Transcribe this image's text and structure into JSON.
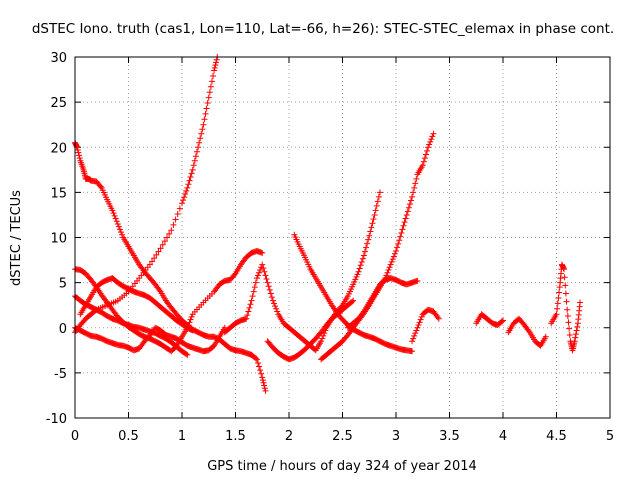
{
  "chart_data": {
    "type": "scatter",
    "title": "dSTEC Iono. truth (cas1, Lon=110, Lat=-66, h=26): STEC-STEC_elemax in phase cont.",
    "xlabel": "GPS time / hours of day 324 of year 2014",
    "ylabel": "dSTEC  / TECUs",
    "xlim": [
      0,
      5
    ],
    "ylim": [
      -10,
      30
    ],
    "xticks": [
      "0",
      "0.5",
      "1",
      "1.5",
      "2",
      "2.5",
      "3",
      "3.5",
      "4",
      "4.5",
      "5"
    ],
    "yticks": [
      "-10",
      "-5",
      "0",
      "5",
      "10",
      "15",
      "20",
      "25",
      "30"
    ],
    "grid": true,
    "marker": "plus",
    "color": "#ff0000",
    "series": [
      {
        "x": [
          0.0,
          0.05,
          0.1,
          0.15,
          0.2,
          0.3,
          0.4,
          0.5,
          0.6,
          0.7,
          0.8,
          0.9,
          1.0,
          1.05,
          1.1,
          1.15,
          1.2,
          1.25,
          1.3,
          1.33
        ],
        "y": [
          -0.5,
          0.3,
          1.0,
          1.5,
          2.0,
          2.5,
          3.0,
          4.0,
          5.5,
          7.0,
          8.8,
          10.8,
          13.8,
          15.5,
          17.5,
          20.0,
          22.5,
          25.5,
          28.5,
          30.0
        ]
      },
      {
        "x": [
          0.0,
          0.02,
          0.05,
          0.08,
          0.1,
          0.13,
          0.15,
          0.2,
          0.25,
          0.3,
          0.35,
          0.4,
          0.45,
          0.5,
          0.55,
          0.6,
          0.65,
          0.7,
          0.75,
          0.8,
          0.85,
          0.9,
          0.95,
          1.0,
          1.05,
          1.1,
          1.15,
          1.2,
          1.25,
          1.3,
          1.35,
          1.4,
          1.45,
          1.5,
          1.55,
          1.6,
          1.65,
          1.7,
          1.75,
          1.78
        ],
        "y": [
          20.5,
          20.0,
          18.5,
          17.5,
          16.5,
          16.5,
          16.3,
          16.2,
          15.5,
          14.2,
          13.0,
          11.5,
          10.0,
          9.0,
          8.0,
          7.0,
          6.2,
          5.5,
          4.8,
          4.0,
          3.0,
          2.2,
          1.5,
          0.8,
          0.3,
          -0.2,
          -0.5,
          -0.8,
          -1.0,
          -1.0,
          -1.3,
          -1.8,
          -2.3,
          -2.5,
          -2.6,
          -2.8,
          -3.0,
          -3.5,
          -5.5,
          -7.0
        ]
      },
      {
        "x": [
          0.0,
          0.05,
          0.1,
          0.15,
          0.2,
          0.25,
          0.3,
          0.35,
          0.4,
          0.45,
          0.5,
          0.55,
          0.6,
          0.65,
          0.7,
          0.75,
          0.8,
          0.85,
          0.9,
          0.95,
          1.0,
          1.05,
          1.1,
          1.2,
          1.3,
          1.35,
          1.4,
          1.45,
          1.5,
          1.55,
          1.6,
          1.65,
          1.7,
          1.75
        ],
        "y": [
          6.5,
          6.4,
          6.0,
          5.3,
          4.5,
          3.6,
          2.8,
          2.0,
          1.2,
          0.6,
          0.1,
          -0.3,
          -0.7,
          -1.0,
          -1.2,
          -1.5,
          -1.8,
          -2.2,
          -2.6,
          -2.0,
          -1.0,
          0.0,
          1.5,
          2.8,
          4.0,
          4.8,
          5.2,
          5.3,
          6.0,
          7.0,
          7.8,
          8.3,
          8.5,
          8.3
        ]
      },
      {
        "x": [
          0.0,
          0.05,
          0.1,
          0.15,
          0.2,
          0.25,
          0.3,
          0.35,
          0.4,
          0.45,
          0.5,
          0.55,
          0.6,
          0.65,
          0.7,
          0.75,
          0.8,
          0.85,
          0.9,
          0.95,
          1.0,
          1.05
        ],
        "y": [
          3.5,
          3.0,
          2.6,
          2.3,
          2.0,
          1.7,
          1.3,
          1.0,
          0.8,
          0.5,
          0.3,
          0.1,
          0.0,
          -0.2,
          -0.4,
          -0.6,
          -0.9,
          -1.2,
          -1.6,
          -2.1,
          -2.6,
          -3.0
        ]
      },
      {
        "x": [
          0.0,
          0.05,
          0.1,
          0.15,
          0.2,
          0.25,
          0.3,
          0.35,
          0.4,
          0.45,
          0.5,
          0.55,
          0.6,
          0.65,
          0.7,
          0.75,
          0.8,
          0.85,
          0.9,
          0.95,
          1.0,
          1.05,
          1.1,
          1.15,
          1.2,
          1.25,
          1.3,
          1.35,
          1.4
        ],
        "y": [
          0.0,
          -0.3,
          -0.6,
          -0.9,
          -1.0,
          -1.2,
          -1.5,
          -1.7,
          -1.9,
          -2.0,
          -2.2,
          -2.5,
          -2.3,
          -1.5,
          -0.8,
          0.0,
          -0.3,
          -0.8,
          -1.0,
          -1.2,
          -1.6,
          -2.0,
          -2.2,
          -2.4,
          -2.6,
          -2.5,
          -2.0,
          -1.0,
          0.0
        ]
      },
      {
        "x": [
          0.05,
          0.1,
          0.15,
          0.2,
          0.25,
          0.3,
          0.35,
          0.4,
          0.45,
          0.5,
          0.55,
          0.6,
          0.65,
          0.7,
          0.75,
          0.8,
          0.85,
          0.9,
          0.95,
          1.0,
          1.05,
          1.1
        ],
        "y": [
          1.5,
          2.5,
          3.5,
          4.5,
          5.0,
          5.3,
          5.5,
          5.0,
          4.6,
          4.3,
          4.0,
          3.8,
          3.6,
          3.3,
          2.8,
          2.3,
          1.8,
          1.3,
          0.8,
          0.4,
          0.0,
          -0.3
        ]
      },
      {
        "x": [
          1.4,
          1.45,
          1.5,
          1.55,
          1.6,
          1.65,
          1.7,
          1.75,
          1.8,
          1.85,
          1.9,
          1.95,
          2.0,
          2.05,
          2.1,
          2.15,
          2.2,
          2.25,
          2.3,
          2.35,
          2.4,
          2.45,
          2.5,
          2.55,
          2.6
        ],
        "y": [
          -0.5,
          0.0,
          0.5,
          0.8,
          1.0,
          3.0,
          5.5,
          7.0,
          5.0,
          3.0,
          1.5,
          0.5,
          0.0,
          -0.5,
          -1.0,
          -1.5,
          -2.0,
          -2.5,
          -1.5,
          0.0,
          1.0,
          1.5,
          2.0,
          2.5,
          3.0
        ]
      },
      {
        "x": [
          2.05,
          2.1,
          2.15,
          2.2,
          2.25,
          2.3,
          2.35,
          2.4,
          2.45,
          2.5,
          2.55,
          2.6,
          2.65,
          2.7,
          2.75,
          2.8,
          2.85,
          2.9,
          2.95,
          3.0,
          3.05,
          3.1,
          3.15
        ],
        "y": [
          10.3,
          9.0,
          7.8,
          6.5,
          5.5,
          4.5,
          3.5,
          2.5,
          1.6,
          0.9,
          0.3,
          -0.2,
          -0.5,
          -0.8,
          -1.0,
          -1.2,
          -1.5,
          -1.8,
          -2.0,
          -2.2,
          -2.4,
          -2.5,
          -2.6
        ]
      },
      {
        "x": [
          1.8,
          1.85,
          1.9,
          1.95,
          2.0,
          2.05,
          2.1,
          2.15,
          2.2,
          2.25,
          2.3,
          2.35,
          2.4,
          2.45,
          2.5,
          2.55,
          2.6,
          2.65,
          2.7,
          2.75,
          2.8,
          2.85
        ],
        "y": [
          -1.5,
          -2.2,
          -2.8,
          -3.2,
          -3.5,
          -3.3,
          -2.9,
          -2.4,
          -1.8,
          -1.2,
          -0.5,
          0.3,
          1.0,
          1.8,
          2.5,
          3.5,
          4.8,
          6.2,
          8.0,
          10.2,
          12.5,
          15.0
        ]
      },
      {
        "x": [
          2.3,
          2.35,
          2.4,
          2.45,
          2.5,
          2.55,
          2.6,
          2.65,
          2.7,
          2.75,
          2.8,
          2.85,
          2.9,
          2.95,
          3.0,
          3.05,
          3.1,
          3.15,
          3.2,
          3.25,
          3.3,
          3.35
        ],
        "y": [
          -3.5,
          -3.0,
          -2.5,
          -2.0,
          -1.5,
          -0.8,
          0.0,
          0.8,
          1.6,
          2.5,
          3.5,
          4.5,
          5.5,
          7.0,
          8.5,
          10.5,
          12.5,
          14.5,
          17.0,
          18.0,
          20.0,
          21.5
        ]
      },
      {
        "x": [
          2.55,
          2.6,
          2.65,
          2.7,
          2.75,
          2.8,
          2.85,
          2.9,
          2.95,
          3.0,
          3.05,
          3.1,
          3.15,
          3.2
        ],
        "y": [
          0.0,
          0.5,
          1.0,
          1.8,
          2.8,
          3.8,
          4.8,
          5.3,
          5.5,
          5.3,
          5.0,
          4.8,
          5.0,
          5.2
        ]
      },
      {
        "x": [
          3.15,
          3.2,
          3.25,
          3.3,
          3.35,
          3.4
        ],
        "y": [
          -1.5,
          0.0,
          1.5,
          2.0,
          1.8,
          1.0
        ]
      },
      {
        "x": [
          3.75,
          3.8,
          3.85,
          3.9,
          3.95,
          4.0
        ],
        "y": [
          0.5,
          1.5,
          1.0,
          0.5,
          0.3,
          0.8
        ]
      },
      {
        "x": [
          4.05,
          4.1,
          4.15,
          4.2,
          4.25,
          4.3,
          4.35,
          4.4
        ],
        "y": [
          -0.5,
          0.5,
          1.0,
          0.3,
          -0.5,
          -1.5,
          -2.0,
          -1.0
        ]
      },
      {
        "x": [
          4.45,
          4.5,
          4.53,
          4.55,
          4.57,
          4.6,
          4.63,
          4.65,
          4.67,
          4.7,
          4.72
        ],
        "y": [
          0.5,
          1.5,
          4.5,
          7.0,
          6.5,
          2.0,
          -1.5,
          -2.5,
          -1.5,
          0.5,
          2.8
        ]
      }
    ]
  }
}
